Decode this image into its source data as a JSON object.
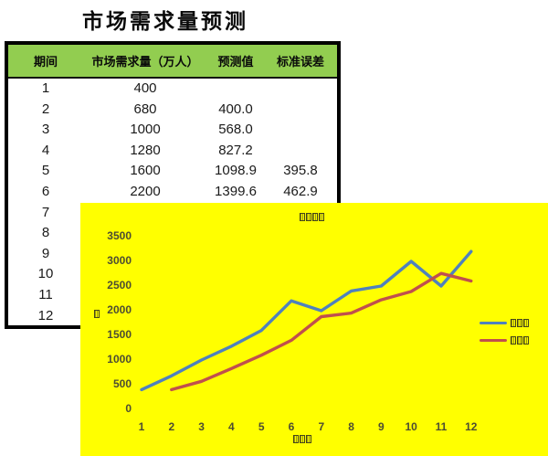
{
  "page": {
    "title": "市场需求量预测"
  },
  "table": {
    "header_bg": "#92CD50",
    "headers": [
      "期间",
      "市场需求量（万人）",
      "预测值",
      "标准误差"
    ],
    "rows": [
      [
        "1",
        "400",
        "",
        ""
      ],
      [
        "2",
        "680",
        "400.0",
        ""
      ],
      [
        "3",
        "1000",
        "568.0",
        ""
      ],
      [
        "4",
        "1280",
        "827.2",
        ""
      ],
      [
        "5",
        "1600",
        "1098.9",
        "395.8"
      ],
      [
        "6",
        "2200",
        "1399.6",
        "462.9"
      ],
      [
        "7",
        "",
        "",
        ""
      ],
      [
        "8",
        "",
        "",
        ""
      ],
      [
        "9",
        "",
        "",
        ""
      ],
      [
        "10",
        "",
        "",
        ""
      ],
      [
        "11",
        "",
        "",
        ""
      ],
      [
        "12",
        "",
        "",
        ""
      ]
    ]
  },
  "chart_data": {
    "type": "line",
    "background": "#FFFF00",
    "title_rendered": "□□□□",
    "y_axis_title_rendered": "□",
    "x_axis_title_rendered": "□□□",
    "x": [
      "1",
      "2",
      "3",
      "4",
      "5",
      "6",
      "7",
      "8",
      "9",
      "10",
      "11",
      "12"
    ],
    "series": [
      {
        "name": "市场需求量（万人）",
        "legend_text_rendered": "□□□",
        "color": "#4F81BD",
        "values": [
          400,
          680,
          1000,
          1280,
          1600,
          2200,
          2000,
          2400,
          2500,
          3000,
          2500,
          3200
        ]
      },
      {
        "name": "预测值",
        "legend_text_rendered": "□□□",
        "color": "#C0504D",
        "values": [
          null,
          400.0,
          568.0,
          827.2,
          1098.9,
          1399.6,
          1879.8,
          1951.9,
          2220.8,
          2388.3,
          2755.3,
          2602.1
        ]
      }
    ],
    "ylim": [
      0,
      3500
    ],
    "ytick_step": 500,
    "grid": false,
    "legend_position": "right"
  }
}
